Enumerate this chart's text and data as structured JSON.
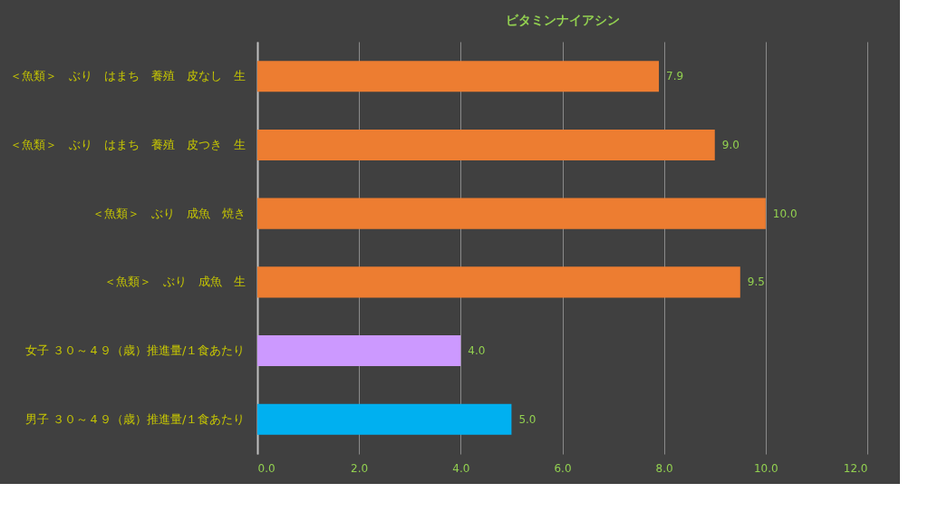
{
  "chart_data": {
    "type": "bar",
    "orientation": "horizontal",
    "title": "ビタミンナイアシン",
    "categories": [
      "＜魚類＞　ぶり　はまち　養殖　皮なし　生",
      "＜魚類＞　ぶり　はまち　養殖　皮つき　生",
      "＜魚類＞　ぶり　成魚　焼き",
      "＜魚類＞　ぶり　成魚　生",
      "女子 ３０～４９（歳）推進量/１食あたり",
      "男子 ３０～４９（歳）推進量/１食あたり"
    ],
    "values": [
      7.9,
      9.0,
      10.0,
      9.5,
      4.0,
      5.0
    ],
    "colors": [
      "#ed7d31",
      "#ed7d31",
      "#ed7d31",
      "#ed7d31",
      "#cc99ff",
      "#00b0f0"
    ],
    "value_labels": [
      "7.9",
      "9.0",
      "10.0",
      "9.5",
      "4.0",
      "5.0"
    ],
    "xlim": [
      0,
      12
    ],
    "xticks": [
      {
        "value": 0,
        "label": "0.0"
      },
      {
        "value": 2,
        "label": "2.0"
      },
      {
        "value": 4,
        "label": "4.0"
      },
      {
        "value": 6,
        "label": "6.0"
      },
      {
        "value": 8,
        "label": "8.0"
      },
      {
        "value": 10,
        "label": "10.0"
      },
      {
        "value": 12,
        "label": "12.0"
      }
    ],
    "grid": "x"
  }
}
